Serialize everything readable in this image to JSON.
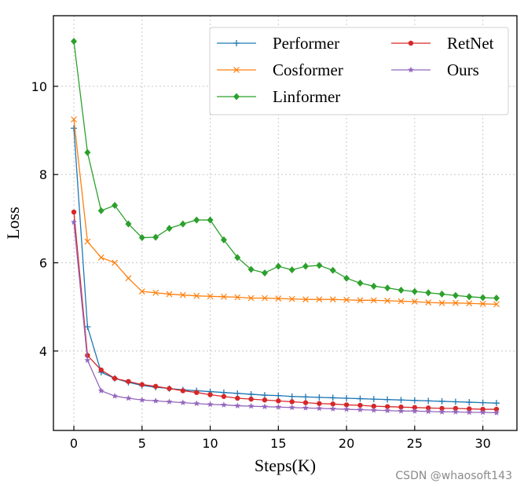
{
  "chart_data": {
    "type": "line",
    "title": "",
    "xlabel": "Steps(K)",
    "ylabel": "Loss",
    "xlim": [
      -1.5,
      32.5
    ],
    "ylim": [
      2.2,
      11.6
    ],
    "xticks": [
      0,
      5,
      10,
      15,
      20,
      25,
      30
    ],
    "yticks": [
      4,
      6,
      8,
      10
    ],
    "grid": true,
    "legend_position": "top-right",
    "x": [
      0,
      1,
      2,
      3,
      4,
      5,
      6,
      7,
      8,
      9,
      10,
      11,
      12,
      13,
      14,
      15,
      16,
      17,
      18,
      19,
      20,
      21,
      22,
      23,
      24,
      25,
      26,
      27,
      28,
      29,
      30,
      31
    ],
    "series": [
      {
        "name": "Performer",
        "color": "#1f77b4",
        "marker": "plus",
        "values": [
          9.05,
          4.55,
          3.52,
          3.38,
          3.29,
          3.22,
          3.18,
          3.15,
          3.12,
          3.1,
          3.08,
          3.06,
          3.04,
          3.02,
          3.0,
          2.99,
          2.97,
          2.96,
          2.95,
          2.94,
          2.93,
          2.92,
          2.91,
          2.9,
          2.89,
          2.88,
          2.87,
          2.86,
          2.85,
          2.84,
          2.83,
          2.82
        ]
      },
      {
        "name": "Cosformer",
        "color": "#ff7f0e",
        "marker": "x",
        "values": [
          9.25,
          6.48,
          6.12,
          6.0,
          5.65,
          5.35,
          5.32,
          5.29,
          5.27,
          5.25,
          5.24,
          5.23,
          5.22,
          5.2,
          5.2,
          5.19,
          5.18,
          5.17,
          5.17,
          5.17,
          5.16,
          5.15,
          5.15,
          5.14,
          5.13,
          5.12,
          5.1,
          5.09,
          5.09,
          5.08,
          5.07,
          5.06
        ]
      },
      {
        "name": "Linformer",
        "color": "#2ca02c",
        "marker": "diamond",
        "values": [
          11.02,
          8.5,
          7.18,
          7.3,
          6.88,
          6.57,
          6.58,
          6.78,
          6.88,
          6.97,
          6.97,
          6.52,
          6.12,
          5.85,
          5.77,
          5.92,
          5.84,
          5.92,
          5.94,
          5.83,
          5.65,
          5.54,
          5.47,
          5.43,
          5.38,
          5.35,
          5.32,
          5.29,
          5.26,
          5.23,
          5.21,
          5.2
        ]
      },
      {
        "name": "RetNet",
        "color": "#d62728",
        "marker": "circle",
        "values": [
          7.15,
          3.9,
          3.57,
          3.38,
          3.31,
          3.24,
          3.2,
          3.15,
          3.1,
          3.06,
          3.01,
          2.97,
          2.93,
          2.91,
          2.89,
          2.87,
          2.85,
          2.83,
          2.81,
          2.8,
          2.78,
          2.77,
          2.75,
          2.74,
          2.73,
          2.72,
          2.71,
          2.7,
          2.7,
          2.69,
          2.68,
          2.68
        ]
      },
      {
        "name": "Ours",
        "color": "#9467bd",
        "marker": "star",
        "values": [
          6.92,
          3.79,
          3.1,
          2.98,
          2.93,
          2.89,
          2.87,
          2.85,
          2.83,
          2.81,
          2.79,
          2.78,
          2.76,
          2.75,
          2.74,
          2.73,
          2.72,
          2.71,
          2.7,
          2.69,
          2.68,
          2.67,
          2.66,
          2.65,
          2.64,
          2.64,
          2.63,
          2.62,
          2.62,
          2.61,
          2.61,
          2.6
        ]
      }
    ]
  },
  "watermark": "CSDN @whaosoft143"
}
